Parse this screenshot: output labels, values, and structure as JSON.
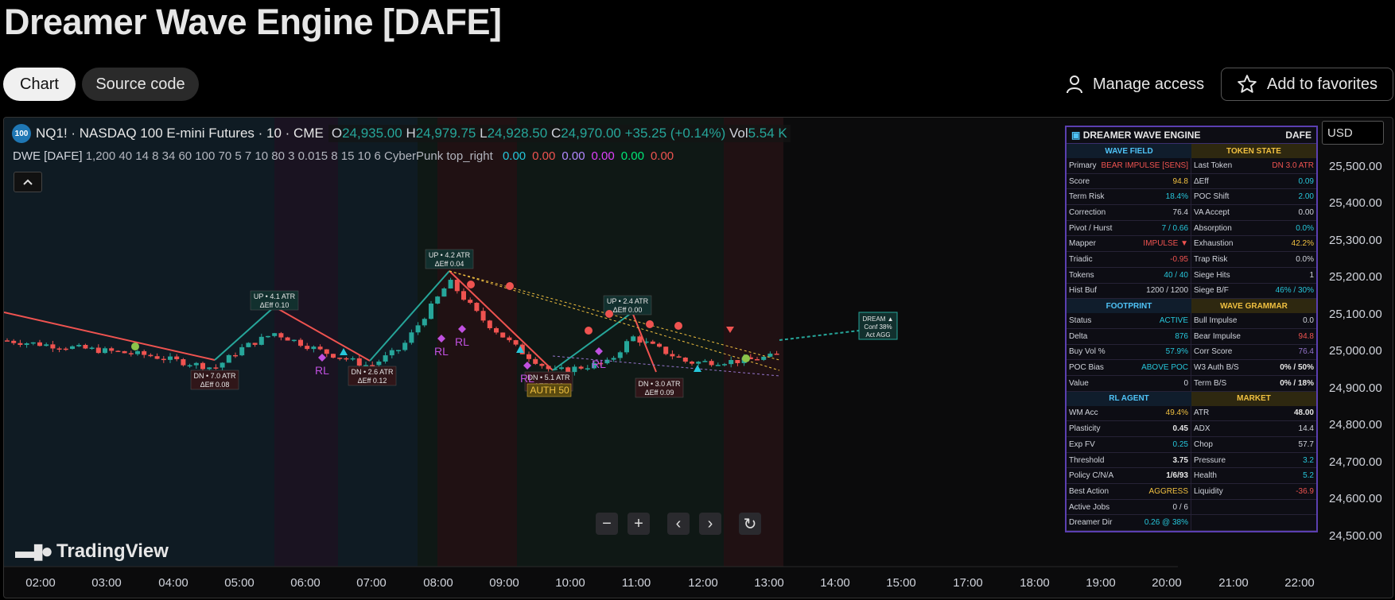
{
  "page": {
    "title": "Dreamer Wave Engine [DAFE]",
    "tabs": [
      {
        "label": "Chart",
        "active": true
      },
      {
        "label": "Source code",
        "active": false
      }
    ],
    "manage_access": "Manage access",
    "add_favorites": "Add to favorites",
    "icons": {
      "user": "user-icon",
      "star": "star-icon"
    }
  },
  "chart": {
    "symbol_badge": "100",
    "symbol": "NQ1! · NASDAQ 100 E-mini Futures · 10 · CME",
    "ohlc": {
      "o_label": "O",
      "o": "24,935.00",
      "h_label": "H",
      "h": "24,979.75",
      "l_label": "L",
      "l": "24,928.50",
      "c_label": "C",
      "c": "24,970.00",
      "change": "+35.25 (+0.14%)",
      "vol_label": "Vol",
      "vol": "5.54 K"
    },
    "indicator": {
      "name": "DWE [DAFE]",
      "params": "1,200 40 14 8 34 60 100 70 5 7 10 80 3 0.015 8 15 10 6 CyberPunk top_right",
      "values": [
        {
          "v": "0.00",
          "color": "#26c6da"
        },
        {
          "v": "0.00",
          "color": "#ef5350"
        },
        {
          "v": "0.00",
          "color": "#b388ff"
        },
        {
          "v": "0.00",
          "color": "#e040fb"
        },
        {
          "v": "0.00",
          "color": "#00e676"
        },
        {
          "v": "0.00",
          "color": "#ef5350"
        }
      ]
    },
    "currency": "USD",
    "y_axis": [
      "25,500.00",
      "25,400.00",
      "25,300.00",
      "25,200.00",
      "25,100.00",
      "25,000.00",
      "24,900.00",
      "24,800.00",
      "24,700.00",
      "24,600.00",
      "24,500.00"
    ],
    "x_axis": [
      "02:00",
      "03:00",
      "04:00",
      "05:00",
      "06:00",
      "07:00",
      "08:00",
      "09:00",
      "10:00",
      "11:00",
      "12:00",
      "13:00",
      "14:00",
      "15:00",
      "17:00",
      "18:00",
      "19:00",
      "20:00",
      "21:00",
      "22:00"
    ],
    "logo": "TradingView",
    "nav_buttons": [
      "−",
      "+",
      "‹",
      "›",
      "↻"
    ],
    "annotations": [
      {
        "text1": "UP • 4.1 ATR",
        "text2": "ΔEff 0.10"
      },
      {
        "text1": "DN • 7.0 ATR",
        "text2": "ΔEff 0.08"
      },
      {
        "text1": "DN • 2.6 ATR",
        "text2": "ΔEff 0.12"
      },
      {
        "text1": "UP • 4.2 ATR",
        "text2": "ΔEff 0.04"
      },
      {
        "text1": "DN • 5.1 ATR",
        "text2": "ΔEff 0.12"
      },
      {
        "text1": "UP • 2.4 ATR",
        "text2": "ΔEff 0.00"
      },
      {
        "text1": "DN • 3.0 ATR",
        "text2": "ΔEff 0.09"
      }
    ],
    "auth_label": "AUTH 50",
    "rl_labels": [
      "RL",
      "RL",
      "RL",
      "RL",
      "RL"
    ],
    "dream_box": [
      "DREAM ▲",
      "Conf 38%",
      "Act AGG"
    ]
  },
  "panel": {
    "title": "DREAMER WAVE ENGINE",
    "tag": "DAFE",
    "sections": [
      {
        "left": "WAVE FIELD",
        "right": "TOKEN STATE",
        "rows": [
          [
            [
              "Primary",
              "BEAR IMPULSE [SENS]",
              "red"
            ],
            [
              "Last Token",
              "DN 3.0 ATR",
              "red"
            ]
          ],
          [
            [
              "Score",
              "94.8",
              "yel"
            ],
            [
              "ΔEff",
              "0.09",
              "cyan"
            ]
          ],
          [
            [
              "Term Risk",
              "18.4%",
              "cyan"
            ],
            [
              "POC Shift",
              "2.00",
              "cyan"
            ]
          ],
          [
            [
              "Correction",
              "76.4",
              "gry"
            ],
            [
              "VA Accept",
              "0.00",
              "gry"
            ]
          ],
          [
            [
              "Pivot / Hurst",
              "7 / 0.66",
              "cyan"
            ],
            [
              "Absorption",
              "0.0%",
              "cyan"
            ]
          ],
          [
            [
              "Mapper",
              "IMPULSE ▼",
              "red"
            ],
            [
              "Exhaustion",
              "42.2%",
              "yel"
            ]
          ],
          [
            [
              "Triadic",
              "-0.95",
              "red"
            ],
            [
              "Trap Risk",
              "0.0%",
              "gry"
            ]
          ],
          [
            [
              "Tokens",
              "40 / 40",
              "cyan"
            ],
            [
              "Siege Hits",
              "1",
              "gry"
            ]
          ],
          [
            [
              "Hist Buf",
              "1200 / 1200",
              "gry"
            ],
            [
              "Siege B/F",
              "46% / 30%",
              "cyan"
            ]
          ]
        ]
      },
      {
        "left": "FOOTPRINT",
        "right": "WAVE GRAMMAR",
        "rows": [
          [
            [
              "Status",
              "ACTIVE",
              "cyan"
            ],
            [
              "Bull Impulse",
              "0.0",
              "gry"
            ]
          ],
          [
            [
              "Delta",
              "876",
              "cyan"
            ],
            [
              "Bear Impulse",
              "94.8",
              "red"
            ]
          ],
          [
            [
              "Buy Vol %",
              "57.9%",
              "cyan"
            ],
            [
              "Corr Score",
              "76.4",
              "pur"
            ]
          ],
          [
            [
              "POC Bias",
              "ABOVE POC",
              "cyan"
            ],
            [
              "W3 Auth B/S",
              "0% / 50%",
              "wht"
            ]
          ],
          [
            [
              "Value",
              "0",
              "gry"
            ],
            [
              "Term B/S",
              "0% / 18%",
              "wht"
            ]
          ]
        ]
      },
      {
        "left": "RL AGENT",
        "right": "MARKET",
        "rows": [
          [
            [
              "WM Acc",
              "49.4%",
              "yel"
            ],
            [
              "ATR",
              "48.00",
              "wht"
            ]
          ],
          [
            [
              "Plasticity",
              "0.45",
              "wht"
            ],
            [
              "ADX",
              "14.4",
              "gry"
            ]
          ],
          [
            [
              "Exp FV",
              "0.25",
              "cyan"
            ],
            [
              "Chop",
              "57.7",
              "gry"
            ]
          ],
          [
            [
              "Threshold",
              "3.75",
              "wht"
            ],
            [
              "Pressure",
              "3.2",
              "cyan"
            ]
          ],
          [
            [
              "Policy C/N/A",
              "1/6/93",
              "wht"
            ],
            [
              "Health",
              "5.2",
              "cyan"
            ]
          ],
          [
            [
              "Best Action",
              "AGGRESS",
              "yel"
            ],
            [
              "Liquidity",
              "-36.9",
              "red"
            ]
          ],
          [
            [
              "Active Jobs",
              "0 / 6",
              "gry"
            ],
            [
              "",
              "",
              "gry"
            ]
          ],
          [
            [
              "Dreamer Dir",
              "0.26 @ 38%",
              "cyan"
            ],
            [
              "",
              "",
              "gry"
            ]
          ]
        ]
      }
    ]
  }
}
